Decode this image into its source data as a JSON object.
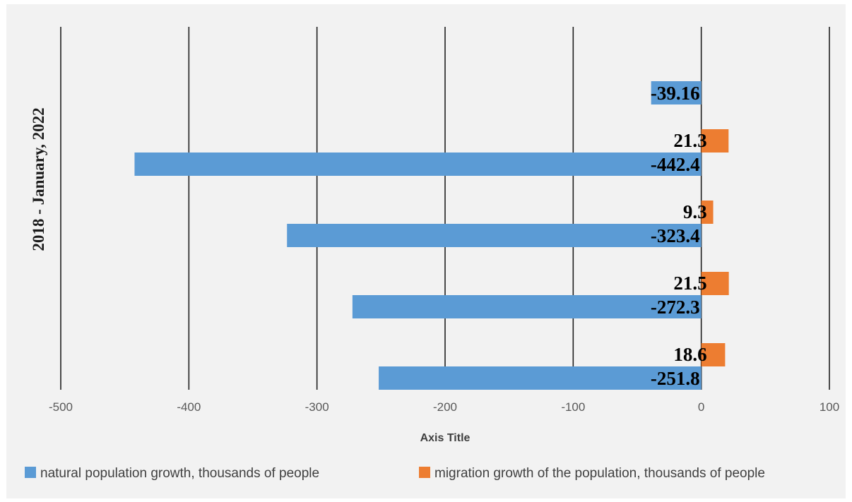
{
  "chart_data": {
    "type": "bar",
    "orientation": "horizontal",
    "ylabel": "2018 - January, 2022",
    "xlabel": "Axis Title",
    "xlim": [
      -500,
      100
    ],
    "xticks": [
      -500,
      -400,
      -300,
      -200,
      -100,
      0,
      100
    ],
    "xtick_labels": [
      "-500",
      "-400",
      "-300",
      "-200",
      "-100",
      "0",
      "100"
    ],
    "grid": "vertical",
    "legend_position": "bottom",
    "categories": [
      "",
      "",
      "",
      "",
      ""
    ],
    "series": [
      {
        "name": "natural population growth, thousands of people",
        "color": "#5b9bd5",
        "values": [
          -39.16,
          -442.4,
          -323.4,
          -272.3,
          -251.8
        ],
        "labels": [
          "-39.16",
          "-442.4",
          "-323.4",
          "-272.3",
          "-251.8"
        ]
      },
      {
        "name": "migration growth of the population, thousands of people",
        "color": "#ed7d31",
        "values": [
          null,
          21.3,
          9.3,
          21.5,
          18.6
        ],
        "labels": [
          "",
          "21.3",
          "9.3",
          "21.5",
          "18.6"
        ]
      }
    ]
  }
}
